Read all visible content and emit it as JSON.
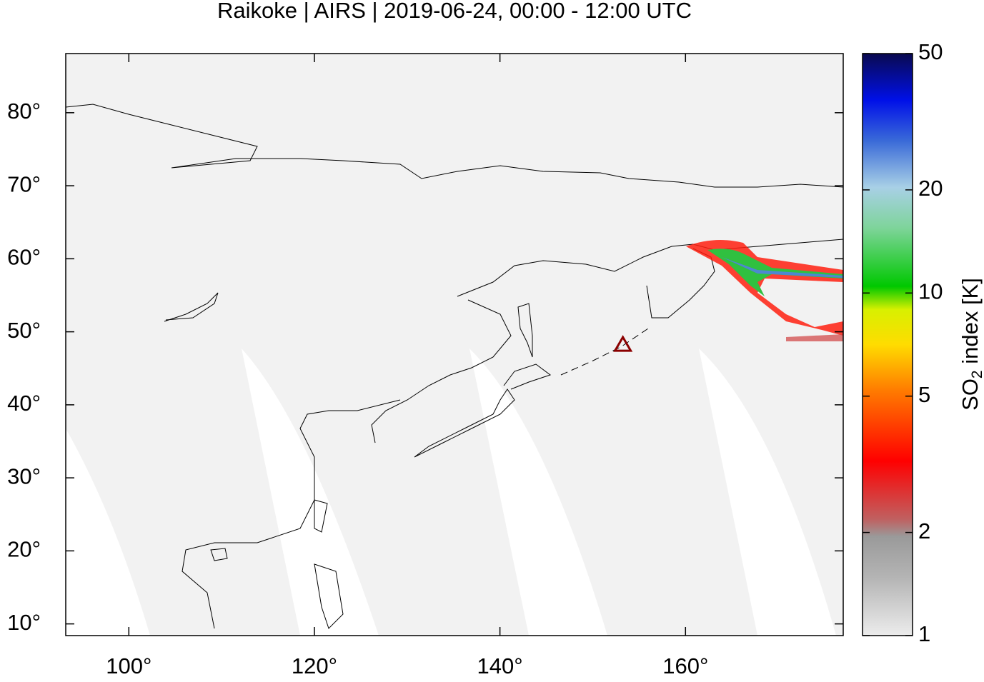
{
  "chart_data": {
    "type": "map",
    "title": "Raikoke | AIRS | 2019-06-24, 00:00 - 12:00 UTC",
    "xlim": [
      93.2,
      177.0
    ],
    "ylim": [
      8.4,
      88.1
    ],
    "xticks": [
      {
        "value": 100,
        "label": "100°"
      },
      {
        "value": 120,
        "label": "120°"
      },
      {
        "value": 140,
        "label": "140°"
      },
      {
        "value": 160,
        "label": "160°"
      }
    ],
    "yticks": [
      {
        "value": 10,
        "label": "10°"
      },
      {
        "value": 20,
        "label": "20°"
      },
      {
        "value": 30,
        "label": "30°"
      },
      {
        "value": 40,
        "label": "40°"
      },
      {
        "value": 50,
        "label": "50°"
      },
      {
        "value": 60,
        "label": "60°"
      },
      {
        "value": 70,
        "label": "70°"
      },
      {
        "value": 80,
        "label": "80°"
      }
    ],
    "volcano": {
      "lon": 153.25,
      "lat": 48.29,
      "color": "#8b0000"
    },
    "colorbar": {
      "label_parts": [
        "SO",
        "2",
        " index [K]"
      ],
      "lim": [
        1,
        50
      ],
      "log": true,
      "ticks": [
        1,
        2,
        5,
        10,
        20,
        50
      ]
    }
  }
}
